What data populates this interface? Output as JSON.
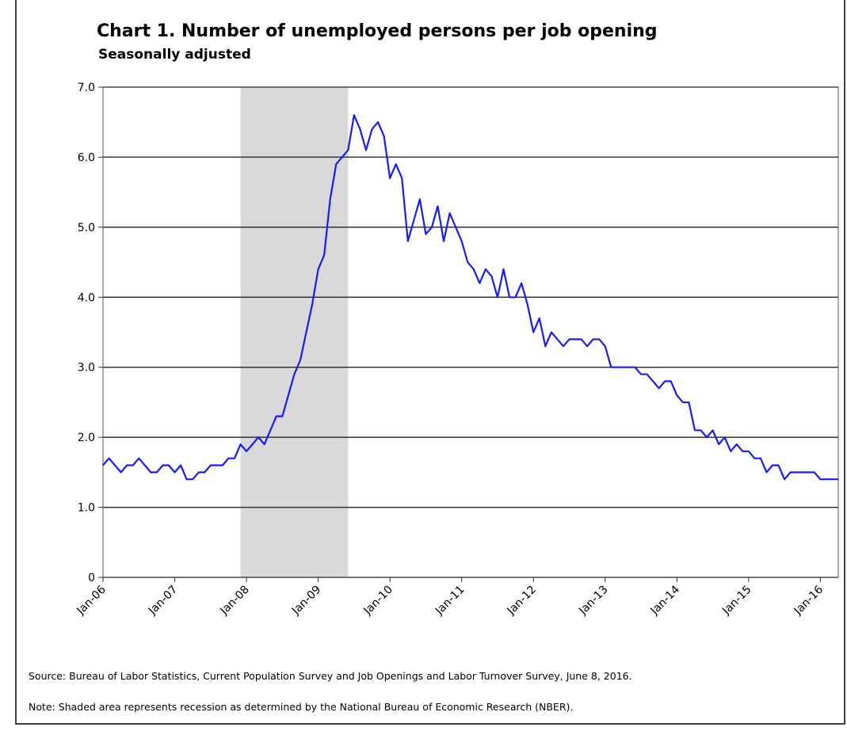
{
  "chart_data": {
    "type": "line",
    "title": "Chart 1. Number of unemployed persons per job opening",
    "subtitle": "Seasonally adjusted",
    "source": "Source: Bureau of Labor Statistics, Current Population Survey and Job Openings and Labor Turnover Survey, June 8, 2016.",
    "note": "Note: Shaded area represents recession as determined by the National Bureau of Economic Research (NBER).",
    "categories": [
      "Jan-06",
      null,
      null,
      null,
      null,
      null,
      null,
      null,
      null,
      null,
      null,
      null,
      "Jan-07",
      null,
      null,
      null,
      null,
      null,
      null,
      null,
      null,
      null,
      null,
      null,
      "Jan-08",
      null,
      null,
      null,
      null,
      null,
      null,
      null,
      null,
      null,
      null,
      null,
      "Jan-09",
      null,
      null,
      null,
      null,
      null,
      null,
      null,
      null,
      null,
      null,
      null,
      "Jan-10",
      null,
      null,
      null,
      null,
      null,
      null,
      null,
      null,
      null,
      null,
      null,
      "Jan-11",
      null,
      null,
      null,
      null,
      null,
      null,
      null,
      null,
      null,
      null,
      null,
      "Jan-12",
      null,
      null,
      null,
      null,
      null,
      null,
      null,
      null,
      null,
      null,
      null,
      "Jan-13",
      null,
      null,
      null,
      null,
      null,
      null,
      null,
      null,
      null,
      null,
      null,
      "Jan-14",
      null,
      null,
      null,
      null,
      null,
      null,
      null,
      null,
      null,
      null,
      null,
      "Jan-15",
      null,
      null,
      null,
      null,
      null,
      null,
      null,
      null,
      null,
      null,
      null,
      "Jan-16",
      null,
      null,
      null
    ],
    "series": [
      {
        "color": "#1a1aff",
        "values": [
          1.6,
          1.7,
          1.6,
          1.5,
          1.6,
          1.6,
          1.7,
          1.6,
          1.5,
          1.5,
          1.6,
          1.6,
          1.5,
          1.6,
          1.4,
          1.4,
          1.5,
          1.5,
          1.6,
          1.6,
          1.6,
          1.7,
          1.7,
          1.9,
          1.8,
          1.9,
          2.0,
          1.9,
          2.1,
          2.3,
          2.3,
          2.6,
          2.9,
          3.1,
          3.5,
          3.9,
          4.4,
          4.6,
          5.4,
          5.9,
          6.0,
          6.1,
          6.6,
          6.4,
          6.1,
          6.4,
          6.5,
          6.3,
          5.7,
          5.9,
          5.7,
          4.8,
          5.1,
          5.4,
          4.9,
          5.0,
          5.3,
          4.8,
          5.2,
          5.0,
          4.8,
          4.5,
          4.4,
          4.2,
          4.4,
          4.3,
          4.0,
          4.4,
          4.0,
          4.0,
          4.2,
          3.9,
          3.5,
          3.7,
          3.3,
          3.5,
          3.4,
          3.3,
          3.4,
          3.4,
          3.4,
          3.3,
          3.4,
          3.4,
          3.3,
          3.0,
          3.0,
          3.0,
          3.0,
          3.0,
          2.9,
          2.9,
          2.8,
          2.7,
          2.8,
          2.8,
          2.6,
          2.5,
          2.5,
          2.1,
          2.1,
          2.0,
          2.1,
          1.9,
          2.0,
          1.8,
          1.9,
          1.8,
          1.8,
          1.7,
          1.7,
          1.5,
          1.6,
          1.6,
          1.4,
          1.5,
          1.5,
          1.5,
          1.5,
          1.5,
          1.4,
          1.4,
          1.4,
          1.4
        ]
      }
    ],
    "shaded_range": [
      23,
      41
    ],
    "ylim": [
      0,
      7
    ],
    "yticks": [
      0,
      {
        "value": 1,
        "label": "1.0"
      },
      {
        "value": 2,
        "label": "2.0"
      },
      {
        "value": 3,
        "label": "3.0"
      },
      {
        "value": 4,
        "label": "4.0"
      },
      {
        "value": 5,
        "label": "5.0"
      },
      {
        "value": 6,
        "label": "6.0"
      },
      {
        "value": 7,
        "label": "7.0"
      }
    ],
    "grid": true
  }
}
